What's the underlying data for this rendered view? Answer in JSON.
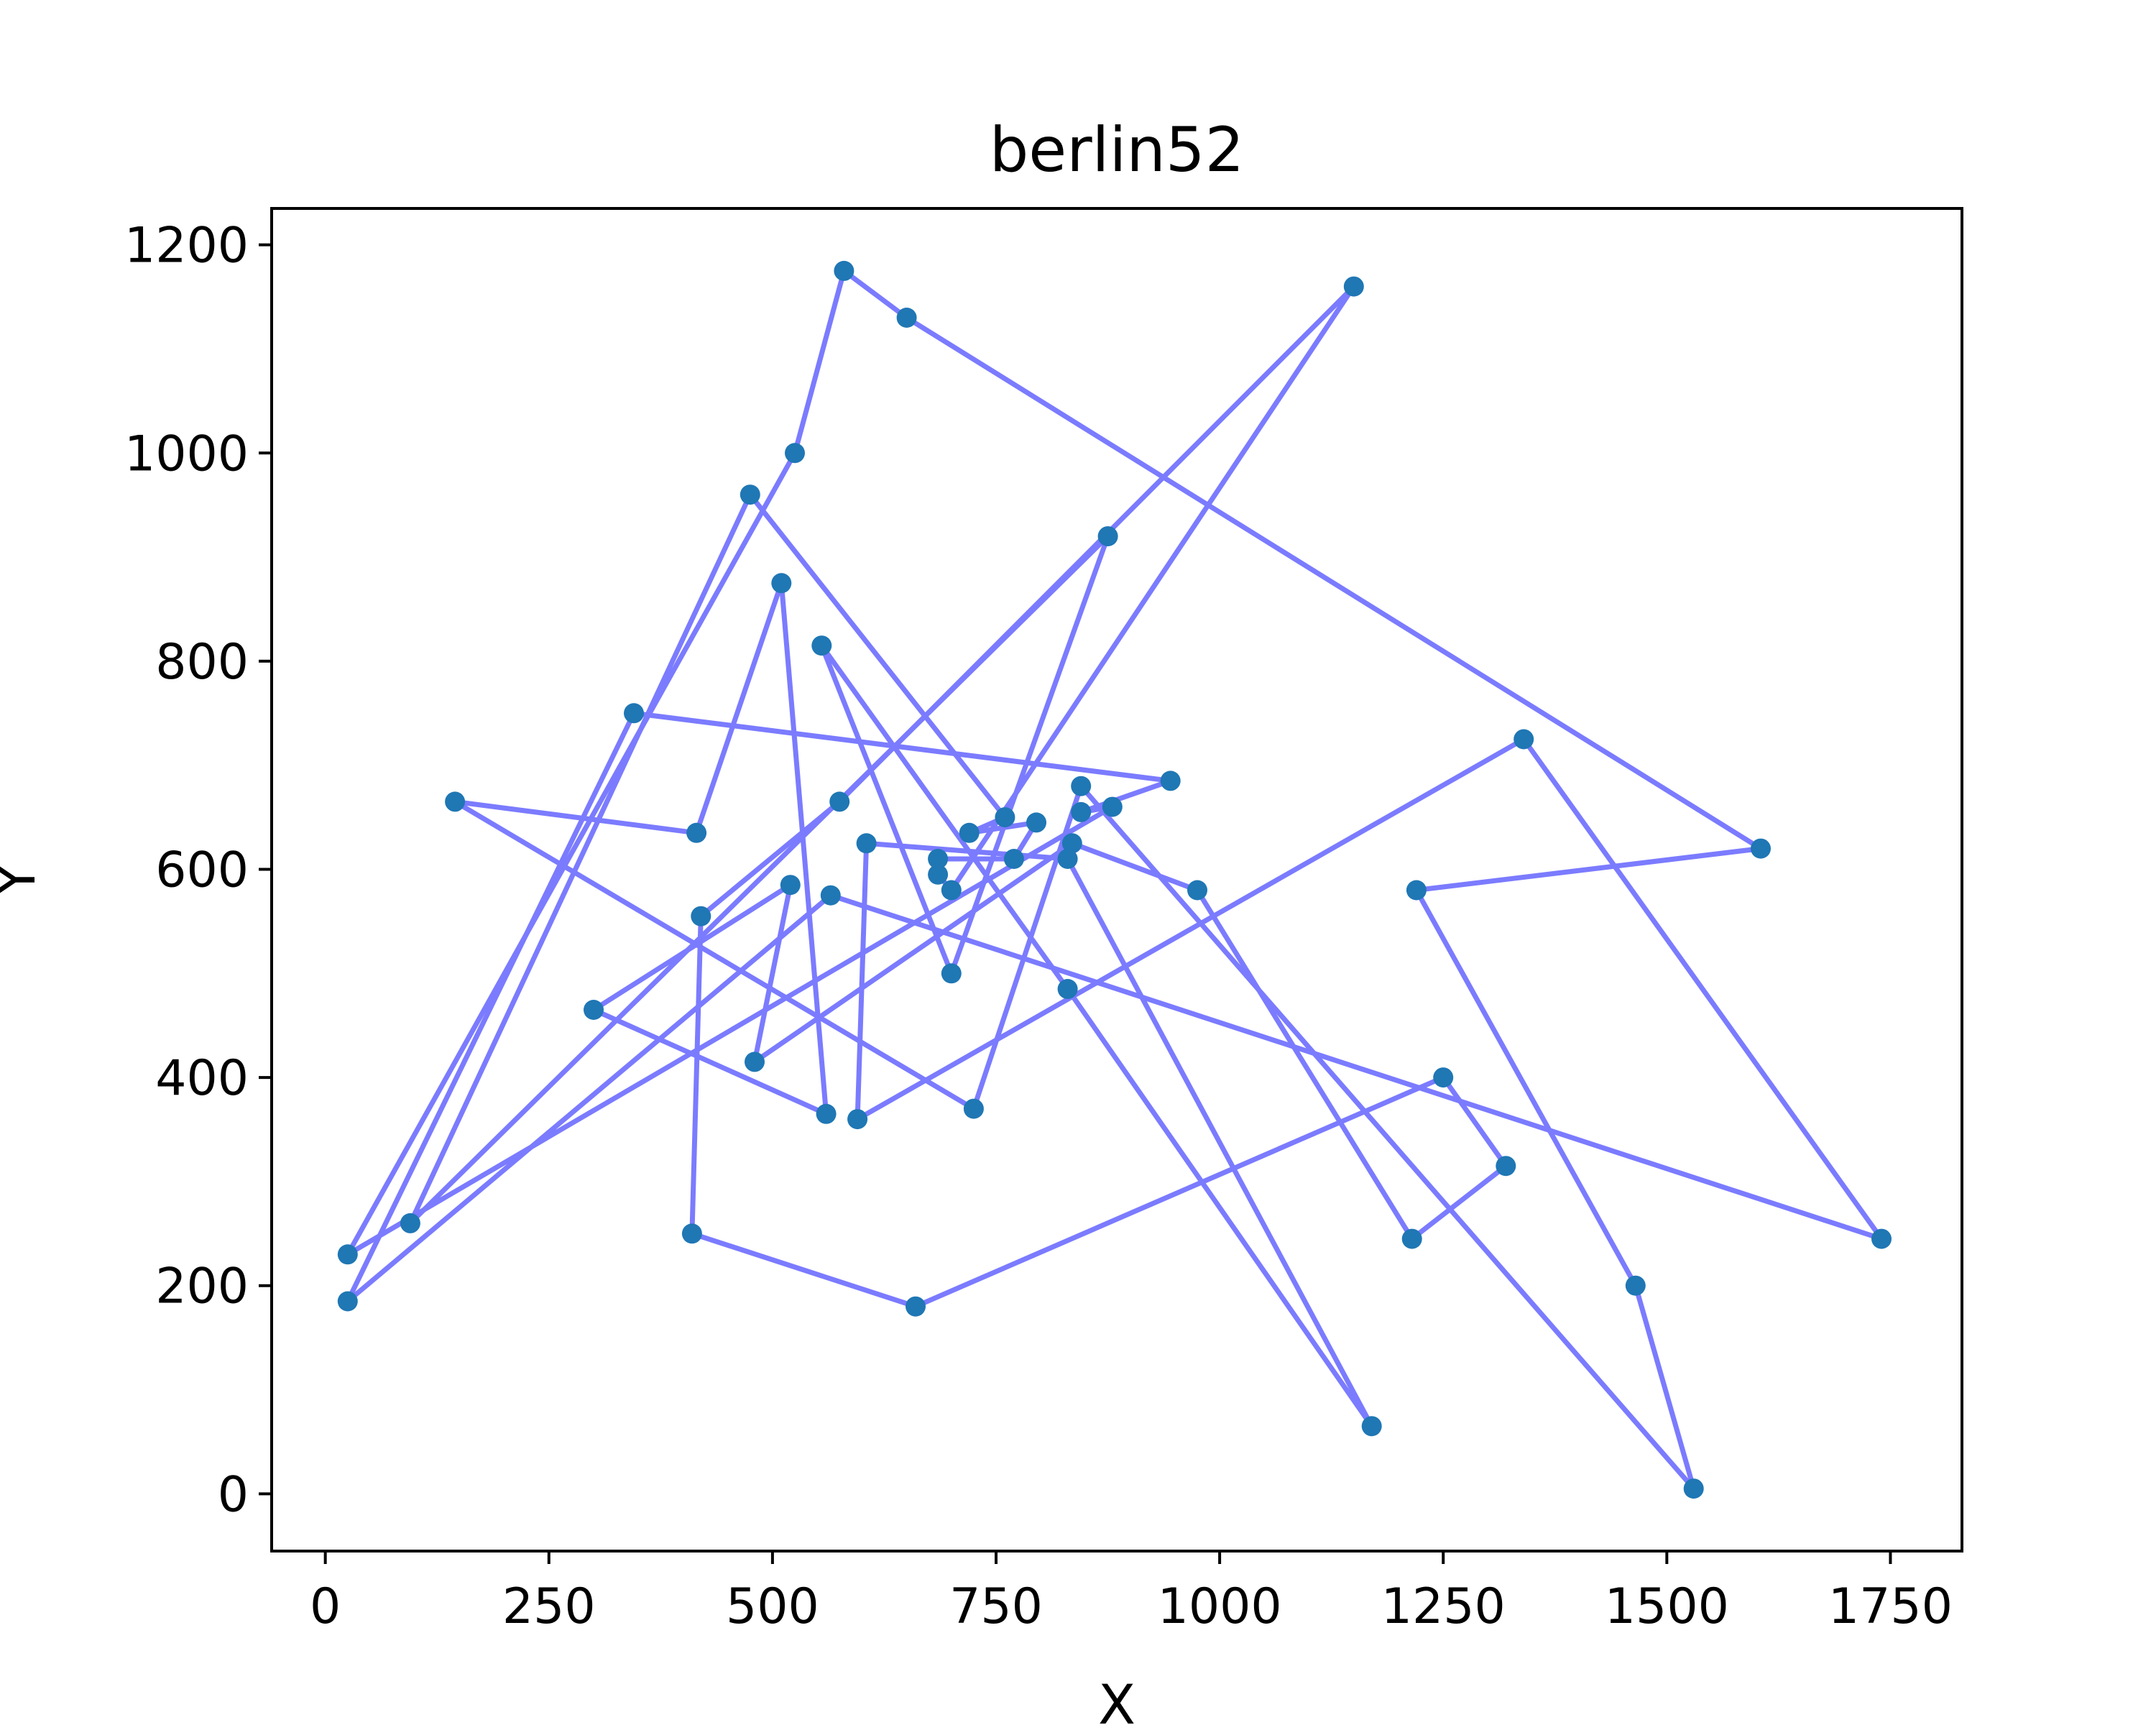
{
  "chart_data": {
    "type": "line",
    "title": "berlin52",
    "xlabel": "X",
    "ylabel": "Y",
    "xlim": [
      -60,
      1830
    ],
    "ylim": [
      -55,
      1235
    ],
    "xticks": [
      0,
      250,
      500,
      750,
      1000,
      1250,
      1500,
      1750
    ],
    "yticks": [
      0,
      200,
      400,
      600,
      800,
      1000,
      1200
    ],
    "grid": false,
    "line_color": "#7b7bff",
    "marker_color": "#1f77b4",
    "series": [
      {
        "points": [
          [
            565,
            575
          ],
          [
            25,
            185
          ],
          [
            345,
            750
          ],
          [
            945,
            685
          ],
          [
            845,
            655
          ],
          [
            880,
            660
          ],
          [
            25,
            230
          ],
          [
            525,
            1000
          ],
          [
            580,
            1175
          ],
          [
            650,
            1130
          ],
          [
            1605,
            620
          ],
          [
            1220,
            580
          ],
          [
            1465,
            200
          ],
          [
            1530,
            5
          ],
          [
            845,
            680
          ],
          [
            725,
            370
          ],
          [
            145,
            665
          ],
          [
            415,
            635
          ],
          [
            510,
            875
          ],
          [
            560,
            365
          ],
          [
            300,
            465
          ],
          [
            520,
            585
          ],
          [
            480,
            415
          ],
          [
            835,
            625
          ],
          [
            975,
            580
          ],
          [
            1215,
            245
          ],
          [
            1320,
            315
          ],
          [
            1250,
            400
          ],
          [
            660,
            180
          ],
          [
            410,
            250
          ],
          [
            420,
            555
          ],
          [
            575,
            665
          ],
          [
            1150,
            1160
          ],
          [
            700,
            580
          ],
          [
            685,
            595
          ],
          [
            685,
            610
          ],
          [
            770,
            610
          ],
          [
            795,
            645
          ],
          [
            720,
            635
          ],
          [
            760,
            650
          ],
          [
            475,
            960
          ],
          [
            95,
            260
          ],
          [
            875,
            920
          ],
          [
            700,
            500
          ],
          [
            555,
            815
          ],
          [
            830,
            485
          ],
          [
            1170,
            65
          ],
          [
            830,
            610
          ],
          [
            605,
            625
          ],
          [
            595,
            360
          ],
          [
            1340,
            725
          ],
          [
            1740,
            245
          ]
        ]
      }
    ]
  }
}
